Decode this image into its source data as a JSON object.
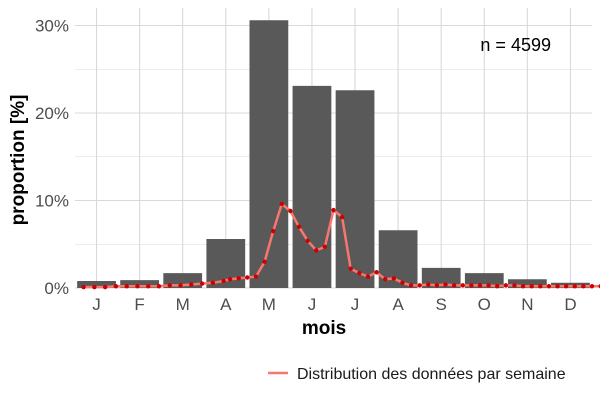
{
  "chart_data": {
    "type": "bar",
    "title": "",
    "xlabel": "mois",
    "ylabel": "proportion [%]",
    "ylim": [
      0,
      32
    ],
    "yticks": [
      0,
      10,
      20,
      30
    ],
    "ytick_labels": [
      "0%",
      "10%",
      "20%",
      "30%"
    ],
    "grid": true,
    "categories": [
      "J",
      "F",
      "M",
      "A",
      "M",
      "J",
      "J",
      "A",
      "S",
      "O",
      "N",
      "D"
    ],
    "series": [
      {
        "type": "bar",
        "values": [
          0.8,
          0.9,
          1.7,
          5.6,
          30.6,
          23.1,
          22.6,
          6.6,
          2.3,
          1.7,
          1.0,
          0.6
        ]
      },
      {
        "type": "line",
        "name": "Distribution des données par semaine",
        "x": [
          0.2,
          0.45,
          0.7,
          0.95,
          1.2,
          1.45,
          1.7,
          1.95,
          2.2,
          2.45,
          2.7,
          2.95,
          3.2,
          3.45,
          3.6,
          3.8,
          4.0,
          4.2,
          4.4,
          4.6,
          4.8,
          5.0,
          5.2,
          5.4,
          5.6,
          5.8,
          6.0,
          6.2,
          6.4,
          6.6,
          6.8,
          7.0,
          7.2,
          7.4,
          7.6,
          7.8,
          8.0,
          8.2,
          8.4,
          8.6,
          8.8,
          9.0,
          9.2,
          9.4,
          9.6,
          9.8,
          10.0,
          10.2,
          10.4,
          10.6,
          10.8,
          11.0,
          11.2,
          11.4,
          11.6,
          11.8,
          12.0,
          12.2
        ],
        "values": [
          0.1,
          0.1,
          0.1,
          0.2,
          0.2,
          0.2,
          0.2,
          0.2,
          0.3,
          0.3,
          0.4,
          0.5,
          0.6,
          0.8,
          1.0,
          1.1,
          1.2,
          1.3,
          3.0,
          6.5,
          9.6,
          8.8,
          7.0,
          5.4,
          4.3,
          4.7,
          8.9,
          8.1,
          2.2,
          1.7,
          1.3,
          1.8,
          1.0,
          1.1,
          0.6,
          0.3,
          0.3,
          0.4,
          0.3,
          0.4,
          0.3,
          0.3,
          0.3,
          0.3,
          0.3,
          0.2,
          0.3,
          0.3,
          0.2,
          0.2,
          0.2,
          0.2,
          0.2,
          0.2,
          0.2,
          0.2,
          0.2,
          0.2
        ]
      }
    ],
    "annotation": "n = 4599",
    "legend": {
      "position": "bottom-right",
      "entries": [
        "Distribution des données par semaine"
      ]
    },
    "colors": {
      "bar": "#595959",
      "line": "#f8766d",
      "point": "#cc0000",
      "grid": "#d9d9d9"
    }
  }
}
